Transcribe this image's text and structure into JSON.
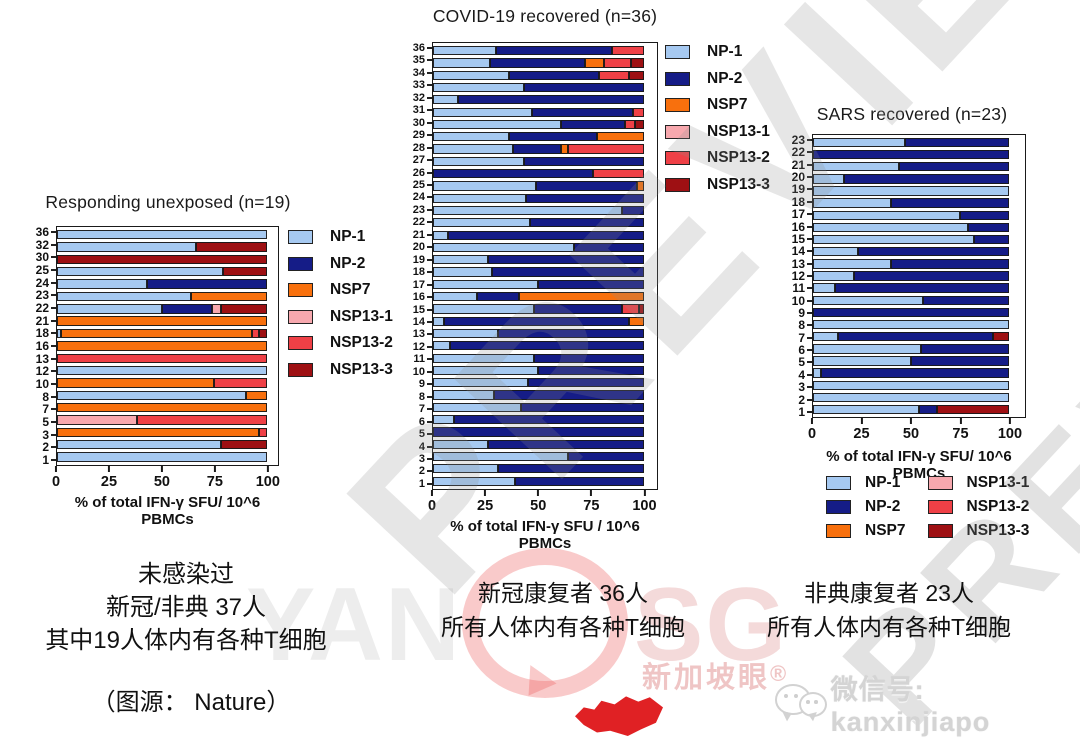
{
  "series_colors": {
    "NP-1": "#A6C9F1",
    "NP-2": "#151C87",
    "NSP7": "#F8700D",
    "NSP13-1": "#F7A8AE",
    "NSP13-2": "#EF4046",
    "NSP13-3": "#9E1013"
  },
  "chart_data": [
    {
      "type": "bar",
      "orientation": "horizontal",
      "stacked": true,
      "title": "Responding unexposed (n=19)",
      "xlabel": "% of total IFN-γ SFU/ 10^6 PBMCs",
      "xticks": [
        0,
        25,
        50,
        75,
        100
      ],
      "xmax": 100,
      "track_ratio": 0.95,
      "legend": {
        "columns": 1,
        "items": [
          "NP-1",
          "NP-2",
          "NSP7",
          "NSP13-1",
          "NSP13-2",
          "NSP13-3"
        ]
      },
      "bars": [
        {
          "label": "36",
          "segments": [
            [
              "NP-1",
              100
            ]
          ]
        },
        {
          "label": "32",
          "segments": [
            [
              "NP-1",
              66
            ],
            [
              "NSP13-3",
              34
            ]
          ]
        },
        {
          "label": "30",
          "segments": [
            [
              "NSP13-3",
              100
            ]
          ]
        },
        {
          "label": "25",
          "segments": [
            [
              "NP-1",
              79
            ],
            [
              "NSP13-3",
              21
            ]
          ]
        },
        {
          "label": "24",
          "segments": [
            [
              "NP-1",
              43
            ],
            [
              "NP-2",
              57
            ]
          ]
        },
        {
          "label": "23",
          "segments": [
            [
              "NP-1",
              64
            ],
            [
              "NSP7",
              36
            ]
          ]
        },
        {
          "label": "22",
          "segments": [
            [
              "NP-1",
              50
            ],
            [
              "NP-2",
              24
            ],
            [
              "NSP13-1",
              4
            ],
            [
              "NSP13-3",
              22
            ]
          ]
        },
        {
          "label": "21",
          "segments": [
            [
              "NSP7",
              100
            ]
          ]
        },
        {
          "label": "18",
          "segments": [
            [
              "NP-1",
              2
            ],
            [
              "NSP7",
              91
            ],
            [
              "NSP13-2",
              3
            ],
            [
              "NSP13-3",
              4
            ]
          ]
        },
        {
          "label": "16",
          "segments": [
            [
              "NSP7",
              100
            ]
          ]
        },
        {
          "label": "13",
          "segments": [
            [
              "NSP13-2",
              100
            ]
          ]
        },
        {
          "label": "12",
          "segments": [
            [
              "NP-1",
              100
            ]
          ]
        },
        {
          "label": "10",
          "segments": [
            [
              "NSP7",
              75
            ],
            [
              "NSP13-2",
              25
            ]
          ]
        },
        {
          "label": "8",
          "segments": [
            [
              "NP-1",
              90
            ],
            [
              "NSP7",
              10
            ]
          ]
        },
        {
          "label": "7",
          "segments": [
            [
              "NSP7",
              100
            ]
          ]
        },
        {
          "label": "5",
          "segments": [
            [
              "NSP13-1",
              38
            ],
            [
              "NSP13-2",
              62
            ]
          ]
        },
        {
          "label": "3",
          "segments": [
            [
              "NSP7",
              96
            ],
            [
              "NSP13-2",
              4
            ]
          ]
        },
        {
          "label": "2",
          "segments": [
            [
              "NP-1",
              78
            ],
            [
              "NSP13-3",
              22
            ]
          ]
        },
        {
          "label": "1",
          "segments": [
            [
              "NP-1",
              100
            ]
          ]
        }
      ]
    },
    {
      "type": "bar",
      "orientation": "horizontal",
      "stacked": true,
      "title": "COVID-19 recovered (n=36)",
      "xlabel": "% of total IFN-γ SFU / 10^6 PBMCs",
      "xticks": [
        0,
        25,
        50,
        75,
        100
      ],
      "xmax": 100,
      "track_ratio": 0.94,
      "legend": {
        "columns": 1,
        "items": [
          "NP-1",
          "NP-2",
          "NSP7",
          "NSP13-1",
          "NSP13-2",
          "NSP13-3"
        ]
      },
      "bars": [
        {
          "label": "36",
          "segments": [
            [
              "NP-1",
              30
            ],
            [
              "NP-2",
              55
            ],
            [
              "NSP13-2",
              15
            ]
          ]
        },
        {
          "label": "35",
          "segments": [
            [
              "NP-1",
              27
            ],
            [
              "NP-2",
              45
            ],
            [
              "NSP7",
              9
            ],
            [
              "NSP13-2",
              13
            ],
            [
              "NSP13-3",
              6
            ]
          ]
        },
        {
          "label": "34",
          "segments": [
            [
              "NP-1",
              36
            ],
            [
              "NP-2",
              43
            ],
            [
              "NSP13-2",
              14
            ],
            [
              "NSP13-3",
              7
            ]
          ]
        },
        {
          "label": "33",
          "segments": [
            [
              "NP-1",
              43
            ],
            [
              "NP-2",
              57
            ]
          ]
        },
        {
          "label": "32",
          "segments": [
            [
              "NP-1",
              12
            ],
            [
              "NP-2",
              88
            ]
          ]
        },
        {
          "label": "31",
          "segments": [
            [
              "NP-1",
              47
            ],
            [
              "NP-2",
              48
            ],
            [
              "NSP13-2",
              5
            ]
          ]
        },
        {
          "label": "30",
          "segments": [
            [
              "NP-1",
              61
            ],
            [
              "NP-2",
              30
            ],
            [
              "NSP13-2",
              5
            ],
            [
              "NSP13-3",
              4
            ]
          ]
        },
        {
          "label": "29",
          "segments": [
            [
              "NP-1",
              36
            ],
            [
              "NP-2",
              42
            ],
            [
              "NSP7",
              22
            ]
          ]
        },
        {
          "label": "28",
          "segments": [
            [
              "NP-1",
              38
            ],
            [
              "NP-2",
              23
            ],
            [
              "NSP7",
              3
            ],
            [
              "NSP13-2",
              36
            ]
          ]
        },
        {
          "label": "27",
          "segments": [
            [
              "NP-1",
              43
            ],
            [
              "NP-2",
              57
            ]
          ]
        },
        {
          "label": "26",
          "segments": [
            [
              "NP-2",
              76
            ],
            [
              "NSP13-2",
              24
            ]
          ]
        },
        {
          "label": "25",
          "segments": [
            [
              "NP-1",
              49
            ],
            [
              "NP-2",
              48
            ],
            [
              "NSP7",
              3
            ]
          ]
        },
        {
          "label": "24",
          "segments": [
            [
              "NP-1",
              44
            ],
            [
              "NP-2",
              56
            ]
          ]
        },
        {
          "label": "23",
          "segments": [
            [
              "NP-1",
              90
            ],
            [
              "NP-2",
              10
            ]
          ]
        },
        {
          "label": "22",
          "segments": [
            [
              "NP-1",
              46
            ],
            [
              "NP-2",
              54
            ]
          ]
        },
        {
          "label": "21",
          "segments": [
            [
              "NP-1",
              7
            ],
            [
              "NP-2",
              93
            ]
          ]
        },
        {
          "label": "20",
          "segments": [
            [
              "NP-1",
              67
            ],
            [
              "NP-2",
              33
            ]
          ]
        },
        {
          "label": "19",
          "segments": [
            [
              "NP-1",
              26
            ],
            [
              "NP-2",
              74
            ]
          ]
        },
        {
          "label": "18",
          "segments": [
            [
              "NP-1",
              28
            ],
            [
              "NP-2",
              72
            ]
          ]
        },
        {
          "label": "17",
          "segments": [
            [
              "NP-1",
              50
            ],
            [
              "NP-2",
              50
            ]
          ]
        },
        {
          "label": "16",
          "segments": [
            [
              "NP-1",
              21
            ],
            [
              "NP-2",
              20
            ],
            [
              "NSP7",
              59
            ]
          ]
        },
        {
          "label": "15",
          "segments": [
            [
              "NP-1",
              48
            ],
            [
              "NP-2",
              42
            ],
            [
              "NSP13-2",
              8
            ],
            [
              "NSP13-3",
              2
            ]
          ]
        },
        {
          "label": "14",
          "segments": [
            [
              "NP-1",
              5
            ],
            [
              "NP-2",
              88
            ],
            [
              "NSP7",
              7
            ]
          ]
        },
        {
          "label": "13",
          "segments": [
            [
              "NP-1",
              31
            ],
            [
              "NP-2",
              69
            ]
          ]
        },
        {
          "label": "12",
          "segments": [
            [
              "NP-1",
              8
            ],
            [
              "NP-2",
              92
            ]
          ]
        },
        {
          "label": "11",
          "segments": [
            [
              "NP-1",
              48
            ],
            [
              "NP-2",
              52
            ]
          ]
        },
        {
          "label": "10",
          "segments": [
            [
              "NP-1",
              50
            ],
            [
              "NP-2",
              50
            ]
          ]
        },
        {
          "label": "9",
          "segments": [
            [
              "NP-1",
              45
            ],
            [
              "NP-2",
              55
            ]
          ]
        },
        {
          "label": "8",
          "segments": [
            [
              "NP-1",
              29
            ],
            [
              "NP-2",
              71
            ]
          ]
        },
        {
          "label": "7",
          "segments": [
            [
              "NP-1",
              42
            ],
            [
              "NP-2",
              58
            ]
          ]
        },
        {
          "label": "6",
          "segments": [
            [
              "NP-1",
              10
            ],
            [
              "NP-2",
              90
            ]
          ]
        },
        {
          "label": "5",
          "segments": [
            [
              "NP-2",
              100
            ]
          ]
        },
        {
          "label": "4",
          "segments": [
            [
              "NP-1",
              26
            ],
            [
              "NP-2",
              74
            ]
          ]
        },
        {
          "label": "3",
          "segments": [
            [
              "NP-1",
              64
            ],
            [
              "NP-2",
              36
            ]
          ]
        },
        {
          "label": "2",
          "segments": [
            [
              "NP-1",
              31
            ],
            [
              "NP-2",
              69
            ]
          ]
        },
        {
          "label": "1",
          "segments": [
            [
              "NP-1",
              39
            ],
            [
              "NP-2",
              61
            ]
          ]
        }
      ]
    },
    {
      "type": "bar",
      "orientation": "horizontal",
      "stacked": true,
      "title": "SARS recovered (n=23)",
      "xlabel": "% of total IFN-γ SFU/ 10^6 PBMCs",
      "xticks": [
        0,
        25,
        50,
        75,
        100
      ],
      "xmax": 100,
      "track_ratio": 0.925,
      "legend": {
        "columns": 2,
        "items": [
          "NP-1",
          "NP-2",
          "NSP7",
          "NSP13-1",
          "NSP13-2",
          "NSP13-3"
        ]
      },
      "bars": [
        {
          "label": "23",
          "segments": [
            [
              "NP-1",
              47
            ],
            [
              "NP-2",
              53
            ]
          ]
        },
        {
          "label": "22",
          "segments": [
            [
              "NP-2",
              100
            ]
          ]
        },
        {
          "label": "21",
          "segments": [
            [
              "NP-1",
              44
            ],
            [
              "NP-2",
              56
            ]
          ]
        },
        {
          "label": "20",
          "segments": [
            [
              "NP-1",
              16
            ],
            [
              "NP-2",
              84
            ]
          ]
        },
        {
          "label": "19",
          "segments": [
            [
              "NP-1",
              100
            ]
          ]
        },
        {
          "label": "18",
          "segments": [
            [
              "NP-1",
              40
            ],
            [
              "NP-2",
              60
            ]
          ]
        },
        {
          "label": "17",
          "segments": [
            [
              "NP-1",
              75
            ],
            [
              "NP-2",
              25
            ]
          ]
        },
        {
          "label": "16",
          "segments": [
            [
              "NP-1",
              79
            ],
            [
              "NP-2",
              21
            ]
          ]
        },
        {
          "label": "15",
          "segments": [
            [
              "NP-1",
              82
            ],
            [
              "NP-2",
              18
            ]
          ]
        },
        {
          "label": "14",
          "segments": [
            [
              "NP-1",
              23
            ],
            [
              "NP-2",
              77
            ]
          ]
        },
        {
          "label": "13",
          "segments": [
            [
              "NP-1",
              40
            ],
            [
              "NP-2",
              60
            ]
          ]
        },
        {
          "label": "12",
          "segments": [
            [
              "NP-1",
              21
            ],
            [
              "NP-2",
              79
            ]
          ]
        },
        {
          "label": "11",
          "segments": [
            [
              "NP-1",
              11
            ],
            [
              "NP-2",
              89
            ]
          ]
        },
        {
          "label": "10",
          "segments": [
            [
              "NP-1",
              56
            ],
            [
              "NP-2",
              44
            ]
          ]
        },
        {
          "label": "9",
          "segments": [
            [
              "NP-2",
              100
            ]
          ]
        },
        {
          "label": "8",
          "segments": [
            [
              "NP-1",
              100
            ]
          ]
        },
        {
          "label": "7",
          "segments": [
            [
              "NP-1",
              13
            ],
            [
              "NP-2",
              79
            ],
            [
              "NSP13-3",
              8
            ]
          ]
        },
        {
          "label": "6",
          "segments": [
            [
              "NP-1",
              55
            ],
            [
              "NP-2",
              45
            ]
          ]
        },
        {
          "label": "5",
          "segments": [
            [
              "NP-1",
              50
            ],
            [
              "NP-2",
              50
            ]
          ]
        },
        {
          "label": "4",
          "segments": [
            [
              "NP-1",
              4
            ],
            [
              "NP-2",
              96
            ]
          ]
        },
        {
          "label": "3",
          "segments": [
            [
              "NP-1",
              100
            ]
          ]
        },
        {
          "label": "2",
          "segments": [
            [
              "NP-1",
              100
            ]
          ]
        },
        {
          "label": "1",
          "segments": [
            [
              "NP-1",
              54
            ],
            [
              "NP-2",
              9
            ],
            [
              "NSP13-3",
              37
            ]
          ]
        }
      ]
    }
  ],
  "captions": {
    "left": {
      "lines": [
        "未感染过",
        "新冠/非典 37人",
        "其中19人体内有各种T细胞"
      ]
    },
    "middle": {
      "lines": [
        "新冠康复者 36人",
        "所有人体内有各种T细胞"
      ]
    },
    "right": {
      "lines": [
        "非典康复者 23人",
        "所有人体内有各种T细胞"
      ]
    },
    "source": "（图源： Nature）"
  },
  "watermark": {
    "diagonal_text": "PREVIEW",
    "brand_left": "YAN",
    "brand_right": "SG",
    "brand_sub": "新加坡眼",
    "brand_reg": "®",
    "wechat_text": "微信号: kanxinjiapo"
  }
}
